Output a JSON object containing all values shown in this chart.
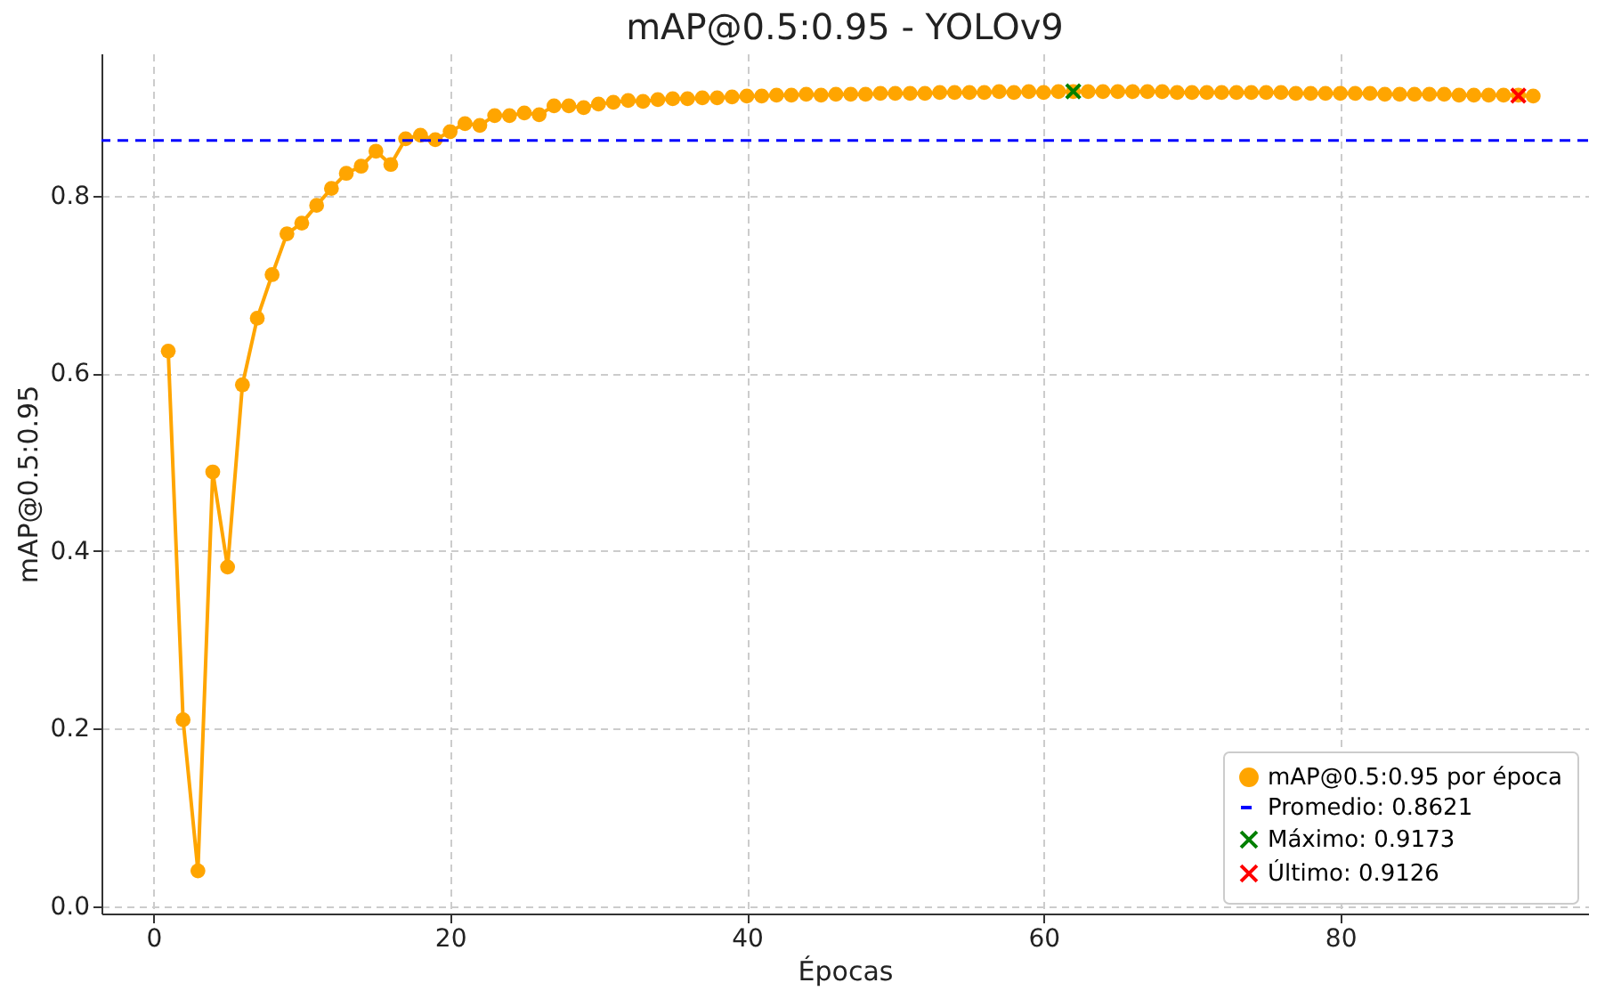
{
  "chart_data": {
    "type": "line",
    "title": "mAP@0.5:0.95 - YOLOv9",
    "xlabel": "Épocas",
    "ylabel": "mAP@0.5:0.95",
    "xlim": [
      -3.5,
      96.7
    ],
    "xticks": [
      0,
      20,
      40,
      60,
      80
    ],
    "ylim": [
      -0.008,
      0.96
    ],
    "yticks": [
      {
        "value": 0,
        "label": "0.0"
      },
      {
        "value": 0.2,
        "label": "0.2"
      },
      {
        "value": 0.4,
        "label": "0.4"
      },
      {
        "value": 0.6,
        "label": "0.6"
      },
      {
        "value": 0.8,
        "label": "0.8"
      }
    ],
    "grid": true,
    "legend": "bottom right",
    "series": [
      {
        "name": "mAP@0.5:0.95 por época",
        "type": "line",
        "color": "#ffa500",
        "marker": "circle",
        "x": [
          1,
          2,
          3,
          4,
          5,
          6,
          7,
          8,
          9,
          10,
          11,
          12,
          13,
          14,
          15,
          16,
          17,
          18,
          19,
          20,
          21,
          22,
          23,
          24,
          25,
          26,
          27,
          28,
          29,
          30,
          31,
          32,
          33,
          34,
          35,
          36,
          37,
          38,
          39,
          40,
          41,
          42,
          43,
          44,
          45,
          46,
          47,
          48,
          49,
          50,
          51,
          52,
          53,
          54,
          55,
          56,
          57,
          58,
          59,
          60,
          61,
          62,
          63,
          64,
          65,
          66,
          67,
          68,
          69,
          70,
          71,
          72,
          73,
          74,
          75,
          76,
          77,
          78,
          79,
          80,
          81,
          82,
          83,
          84,
          85,
          86,
          87,
          88,
          89,
          90,
          91,
          92,
          93
        ],
        "values": [
          0.625,
          0.21,
          0.04,
          0.489,
          0.382,
          0.587,
          0.662,
          0.711,
          0.757,
          0.769,
          0.789,
          0.808,
          0.825,
          0.833,
          0.85,
          0.835,
          0.864,
          0.868,
          0.863,
          0.872,
          0.881,
          0.879,
          0.89,
          0.89,
          0.893,
          0.891,
          0.901,
          0.901,
          0.899,
          0.903,
          0.905,
          0.907,
          0.906,
          0.908,
          0.909,
          0.909,
          0.91,
          0.91,
          0.911,
          0.912,
          0.912,
          0.913,
          0.913,
          0.914,
          0.913,
          0.914,
          0.914,
          0.914,
          0.915,
          0.915,
          0.915,
          0.915,
          0.916,
          0.916,
          0.916,
          0.916,
          0.917,
          0.916,
          0.917,
          0.916,
          0.917,
          0.917,
          0.917,
          0.917,
          0.917,
          0.917,
          0.917,
          0.917,
          0.916,
          0.916,
          0.916,
          0.916,
          0.916,
          0.916,
          0.916,
          0.916,
          0.915,
          0.915,
          0.915,
          0.915,
          0.915,
          0.915,
          0.914,
          0.914,
          0.914,
          0.914,
          0.914,
          0.913,
          0.913,
          0.913,
          0.913,
          0.913,
          0.912
        ]
      },
      {
        "name": "Máximo: 0.9173",
        "type": "scatter",
        "color": "#008000",
        "marker": "cross",
        "x": [
          62
        ],
        "values": [
          0.9173
        ]
      },
      {
        "name": "Último: 0.9126",
        "type": "scatter",
        "color": "#ff0000",
        "marker": "cross",
        "x": [
          92
        ],
        "values": [
          0.9126
        ]
      }
    ],
    "ref_lines": [
      {
        "axis": "y",
        "value": 0.8621,
        "label": "Promedio: 0.8621",
        "color": "#0000ff",
        "line_style": "dashed"
      }
    ]
  }
}
